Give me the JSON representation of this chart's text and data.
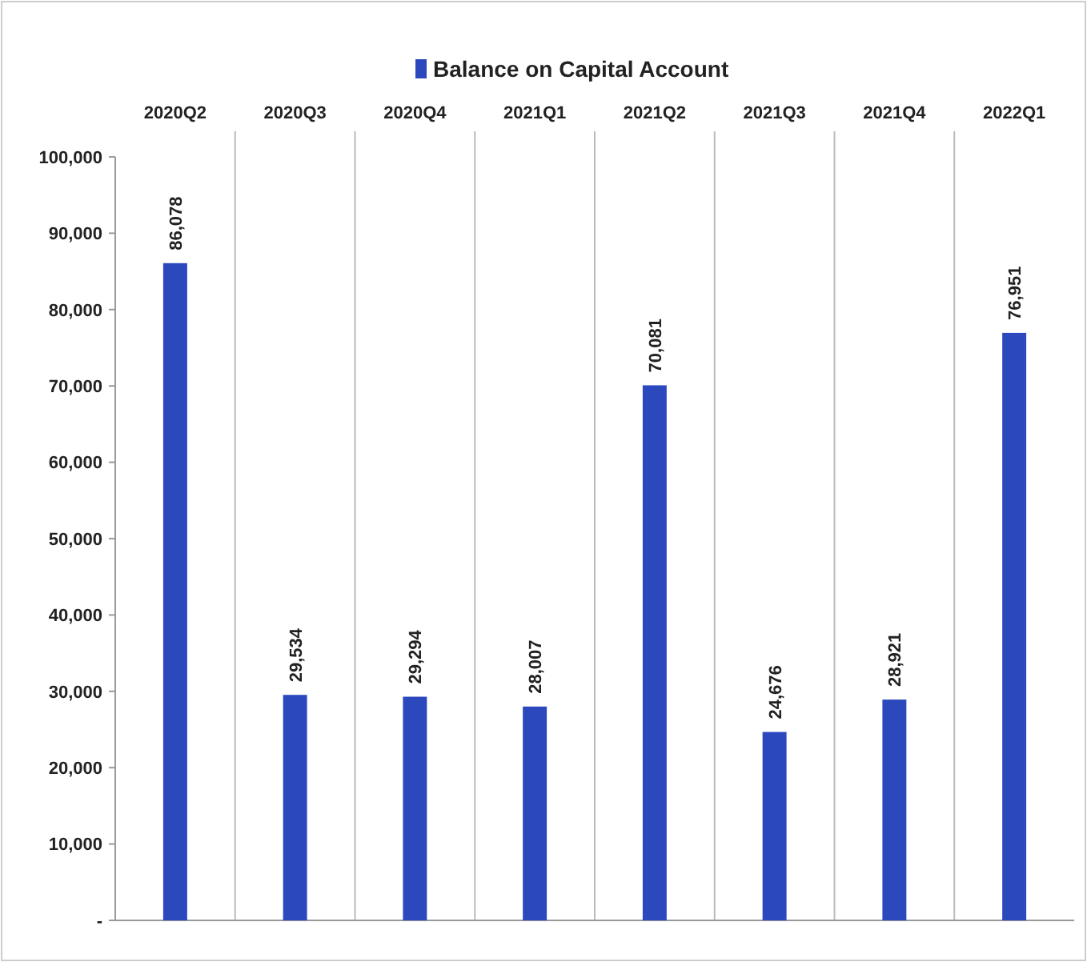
{
  "chart_data": {
    "type": "bar",
    "categories": [
      "2020Q2",
      "2020Q3",
      "2020Q4",
      "2021Q1",
      "2021Q2",
      "2021Q3",
      "2021Q4",
      "2022Q1"
    ],
    "series": [
      {
        "name": "Balance on Capital Account",
        "color": "#2b48bd",
        "values": [
          86078,
          29534,
          29294,
          28007,
          70081,
          24676,
          28921,
          76951
        ],
        "value_labels": [
          "86,078",
          "29,534",
          "29,294",
          "28,007",
          "70,081",
          "24,676",
          "28,921",
          "76,951"
        ]
      }
    ],
    "ylim": [
      0,
      100000
    ],
    "yticks": [
      {
        "value": 0,
        "label": "-"
      },
      {
        "value": 10000,
        "label": "10,000"
      },
      {
        "value": 20000,
        "label": "20,000"
      },
      {
        "value": 30000,
        "label": "30,000"
      },
      {
        "value": 40000,
        "label": "40,000"
      },
      {
        "value": 50000,
        "label": "50,000"
      },
      {
        "value": 60000,
        "label": "60,000"
      },
      {
        "value": 70000,
        "label": "70,000"
      },
      {
        "value": 80000,
        "label": "80,000"
      },
      {
        "value": 90000,
        "label": "90,000"
      },
      {
        "value": 100000,
        "label": "100,000"
      }
    ],
    "grid": "x",
    "legend": "top"
  }
}
